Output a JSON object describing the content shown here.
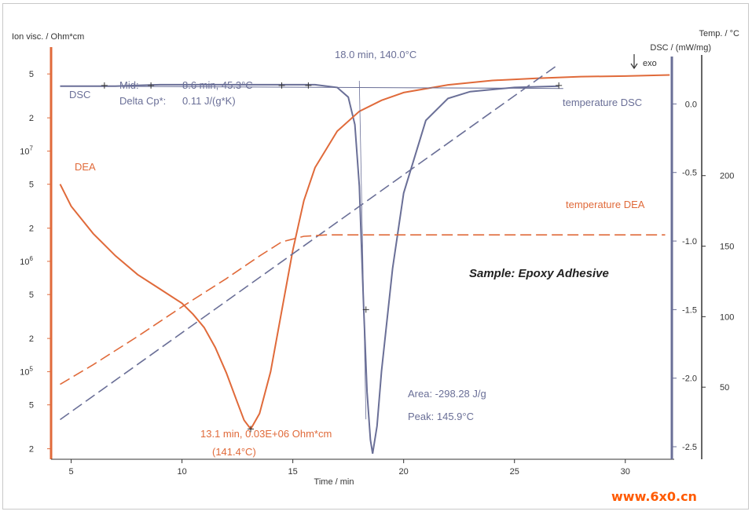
{
  "chart_data": {
    "type": "line",
    "title": "Sample: Epoxy Adhesive",
    "x_axis": {
      "label": "Time / min",
      "range": [
        4.2,
        32.1
      ],
      "ticks": [
        5,
        10,
        15,
        20,
        25,
        30
      ]
    },
    "left_axis": {
      "label": "Ion visc. / Ohm*cm",
      "scale": "log",
      "range_log10": [
        4.22,
        7.8
      ],
      "ticks": [
        {
          "label": "5",
          "log": 7.699
        },
        {
          "label": "2",
          "log": 7.301
        },
        {
          "label": "10^7",
          "log": 7.0
        },
        {
          "label": "5",
          "log": 6.699
        },
        {
          "label": "2",
          "log": 6.301
        },
        {
          "label": "10^6",
          "log": 6.0
        },
        {
          "label": "5",
          "log": 5.699
        },
        {
          "label": "2",
          "log": 5.301
        },
        {
          "label": "10^5",
          "log": 5.0
        },
        {
          "label": "5",
          "log": 4.699
        },
        {
          "label": "2",
          "log": 4.301
        }
      ]
    },
    "dsc_axis": {
      "label": "DSC / (mW/mg)",
      "exo_label": "exo",
      "range": [
        -2.58,
        0.3
      ],
      "ticks": [
        0.0,
        -0.5,
        -1.0,
        -1.5,
        -2.0,
        -2.5
      ]
    },
    "temp_axis": {
      "label": "Temp. / °C",
      "range": [
        0,
        280
      ],
      "ticks": [
        50,
        100,
        150,
        200
      ]
    },
    "series": [
      {
        "name": "DSC",
        "axis": "dsc",
        "color": "#6a6f97",
        "style": "solid",
        "points": [
          [
            4.5,
            0.13
          ],
          [
            6,
            0.13
          ],
          [
            7,
            0.13
          ],
          [
            8,
            0.135
          ],
          [
            9,
            0.14
          ],
          [
            10,
            0.14
          ],
          [
            12,
            0.14
          ],
          [
            14,
            0.14
          ],
          [
            16,
            0.14
          ],
          [
            17,
            0.12
          ],
          [
            17.5,
            0.05
          ],
          [
            17.8,
            -0.15
          ],
          [
            18.0,
            -0.6
          ],
          [
            18.2,
            -1.5
          ],
          [
            18.35,
            -2.1
          ],
          [
            18.5,
            -2.45
          ],
          [
            18.6,
            -2.55
          ],
          [
            18.8,
            -2.35
          ],
          [
            19.0,
            -1.95
          ],
          [
            19.5,
            -1.2
          ],
          [
            20.0,
            -0.65
          ],
          [
            21,
            -0.12
          ],
          [
            22,
            0.04
          ],
          [
            23,
            0.09
          ],
          [
            25,
            0.12
          ],
          [
            27,
            0.13
          ]
        ]
      },
      {
        "name": "DEA",
        "axis": "left",
        "color": "#e06a3a",
        "style": "solid",
        "points": [
          [
            4.5,
            6.7
          ],
          [
            5,
            6.5
          ],
          [
            6,
            6.25
          ],
          [
            7,
            6.05
          ],
          [
            8,
            5.88
          ],
          [
            9,
            5.75
          ],
          [
            10,
            5.62
          ],
          [
            10.5,
            5.52
          ],
          [
            11,
            5.4
          ],
          [
            11.5,
            5.22
          ],
          [
            12,
            4.99
          ],
          [
            12.5,
            4.72
          ],
          [
            12.8,
            4.56
          ],
          [
            13.1,
            4.48
          ],
          [
            13.5,
            4.62
          ],
          [
            14,
            5.0
          ],
          [
            14.5,
            5.55
          ],
          [
            15,
            6.1
          ],
          [
            15.5,
            6.55
          ],
          [
            16,
            6.85
          ],
          [
            17,
            7.18
          ],
          [
            18,
            7.36
          ],
          [
            19,
            7.46
          ],
          [
            20,
            7.53
          ],
          [
            22,
            7.6
          ],
          [
            24,
            7.64
          ],
          [
            26,
            7.66
          ],
          [
            28,
            7.675
          ],
          [
            30,
            7.68
          ],
          [
            32,
            7.69
          ]
        ]
      },
      {
        "name": "temperature DSC",
        "axis": "temp",
        "color": "#6a6f97",
        "style": "dashed",
        "points": [
          [
            4.5,
            27
          ],
          [
            27.0,
            279
          ]
        ]
      },
      {
        "name": "temperature DEA",
        "axis": "temp",
        "color": "#e06a3a",
        "style": "dashed",
        "points": [
          [
            4.5,
            52
          ],
          [
            6,
            66
          ],
          [
            8,
            86
          ],
          [
            10,
            107
          ],
          [
            12,
            127
          ],
          [
            13.5,
            143
          ],
          [
            14.5,
            153
          ],
          [
            15.5,
            157
          ],
          [
            16.5,
            158
          ],
          [
            20,
            158
          ],
          [
            25,
            158
          ],
          [
            31.8,
            158
          ]
        ]
      }
    ],
    "annotations": [
      {
        "text": "18.0 min, 140.0°C",
        "series": "DSC",
        "color": "#6a6f97"
      },
      {
        "text": "Mid:",
        "color": "#6a6f97"
      },
      {
        "text": "8.6 min, 45.3°C",
        "color": "#6a6f97"
      },
      {
        "text": "Delta Cp*:",
        "color": "#6a6f97"
      },
      {
        "text": "0.11 J/(g*K)",
        "color": "#6a6f97"
      },
      {
        "text": "Area:  -298.28 J/g",
        "color": "#6a6f97"
      },
      {
        "text": "Peak:  145.9°C",
        "color": "#6a6f97"
      },
      {
        "text": "13.1 min, 0.03E+06 Ohm*cm",
        "color": "#e06a3a"
      },
      {
        "text": "(141.4°C)",
        "color": "#e06a3a"
      }
    ],
    "labels": {
      "dsc": "DSC",
      "dea": "DEA",
      "temp_dsc": "temperature DSC",
      "temp_dea": "temperature DEA"
    },
    "markers": {
      "dsc_points_x": [
        6.5,
        8.6,
        14.5,
        15.7,
        18.3,
        27.0
      ],
      "dea_min_x": 13.1,
      "dea_min_log": 4.48
    },
    "grid": false
  },
  "watermark": "www.6x0.cn"
}
